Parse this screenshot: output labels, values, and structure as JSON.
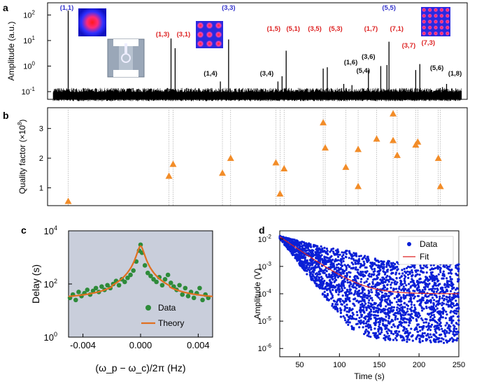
{
  "figure": {
    "panel_labels": [
      "a",
      "b",
      "c",
      "d"
    ]
  },
  "colors": {
    "mode_blue": "#3333cc",
    "mode_red": "#dd2222",
    "mode_black": "#111111",
    "triangle": "#f28c28",
    "scatter_green": "#2e8b3a",
    "theory_orange": "#e07020",
    "d_data": "#0a1fd6",
    "d_fit": "#dd2222",
    "c_bg": "#c9cedb"
  },
  "chart_data": [
    {
      "id": "a",
      "type": "line",
      "ylabel": "Amplitude (a.u.)",
      "yscale": "log",
      "ylim": [
        0.05,
        300
      ],
      "y_ticks": [
        "10",
        "10",
        "10",
        "10"
      ],
      "y_tick_exps": [
        "-1",
        "0",
        "1",
        "2"
      ],
      "y_tick_values": [
        0.1,
        1,
        10,
        100
      ],
      "noise_floor": 0.07,
      "peaks": [
        {
          "label": "(1,1)",
          "x": 0.04,
          "amp": 150,
          "color": "blue"
        },
        {
          "label": "(1,3)",
          "x": 0.29,
          "amp": 12,
          "color": "red"
        },
        {
          "label": "(3,1)",
          "x": 0.3,
          "amp": 5,
          "color": "red"
        },
        {
          "label": "(1,4)",
          "x": 0.41,
          "amp": 0.25,
          "color": "black"
        },
        {
          "label": "(3,3)",
          "x": 0.43,
          "amp": 11,
          "color": "blue"
        },
        {
          "label": "(3,4)",
          "x": 0.55,
          "amp": 0.25,
          "color": "black"
        },
        {
          "label": "(1,5)",
          "x": 0.56,
          "amp": 0.4,
          "color": "red"
        },
        {
          "label": "(5,1)",
          "x": 0.57,
          "amp": 4,
          "color": "red"
        },
        {
          "label": "(3,5)",
          "x": 0.66,
          "amp": 0.8,
          "color": "red"
        },
        {
          "label": "(5,3)",
          "x": 0.67,
          "amp": 0.9,
          "color": "red"
        },
        {
          "label": "(1,6)",
          "x": 0.71,
          "amp": 0.2,
          "color": "black"
        },
        {
          "label": "(5,4)",
          "x": 0.73,
          "amp": 0.18,
          "color": "black"
        },
        {
          "label": "(3,6)",
          "x": 0.77,
          "amp": 0.7,
          "color": "black"
        },
        {
          "label": "(1,7)",
          "x": 0.8,
          "amp": 1.0,
          "color": "red"
        },
        {
          "label": "(7,1)",
          "x": 0.815,
          "amp": 1.1,
          "color": "red"
        },
        {
          "label": "(5,5)",
          "x": 0.82,
          "amp": 9,
          "color": "blue"
        },
        {
          "label": "(3,7)",
          "x": 0.885,
          "amp": 0.7,
          "color": "red"
        },
        {
          "label": "(7,3)",
          "x": 0.895,
          "amp": 1.2,
          "color": "red"
        },
        {
          "label": "(5,6)",
          "x": 0.95,
          "amp": 0.15,
          "color": "black"
        },
        {
          "label": "(1,8)",
          "x": 0.96,
          "amp": 0.2,
          "color": "black"
        }
      ]
    },
    {
      "id": "b",
      "type": "scatter",
      "ylabel": "Quality factor (×10",
      "ylabel_exp": "8",
      "ylim": [
        0.4,
        3.7
      ],
      "y_ticks": [
        1,
        2,
        3
      ],
      "points": [
        {
          "x": 0.04,
          "q": 0.55
        },
        {
          "x": 0.285,
          "q": 1.4
        },
        {
          "x": 0.295,
          "q": 1.8
        },
        {
          "x": 0.415,
          "q": 1.5
        },
        {
          "x": 0.435,
          "q": 2.0
        },
        {
          "x": 0.545,
          "q": 1.85
        },
        {
          "x": 0.555,
          "q": 0.8
        },
        {
          "x": 0.565,
          "q": 1.65
        },
        {
          "x": 0.66,
          "q": 3.2
        },
        {
          "x": 0.665,
          "q": 2.35
        },
        {
          "x": 0.715,
          "q": 1.7
        },
        {
          "x": 0.745,
          "q": 2.3
        },
        {
          "x": 0.745,
          "q": 1.05
        },
        {
          "x": 0.79,
          "q": 2.65
        },
        {
          "x": 0.83,
          "q": 3.5
        },
        {
          "x": 0.83,
          "q": 2.6
        },
        {
          "x": 0.84,
          "q": 2.1
        },
        {
          "x": 0.885,
          "q": 2.45
        },
        {
          "x": 0.89,
          "q": 2.55
        },
        {
          "x": 0.94,
          "q": 2.0
        },
        {
          "x": 0.945,
          "q": 1.05
        }
      ]
    },
    {
      "id": "c",
      "type": "scatter",
      "xlabel": "(ω_p − ω_c)/2π (Hz)",
      "ylabel": "Delay (s)",
      "yscale": "log",
      "xlim": [
        -0.005,
        0.005
      ],
      "ylim": [
        1,
        10000
      ],
      "x_ticks": [
        -0.004,
        0.0,
        0.004
      ],
      "x_tick_labels": [
        "-0.004",
        "0.000",
        "0.004"
      ],
      "y_tick_values": [
        1,
        100,
        10000
      ],
      "y_tick_labels": [
        "10",
        "10",
        "10"
      ],
      "y_tick_exps": [
        "0",
        "2",
        "4"
      ],
      "legend": [
        "Data",
        "Theory"
      ],
      "legend_position": "bottom-right",
      "theory_center": 0.0,
      "theory_peak": 2500,
      "theory_baseline": 25,
      "theory_width": 0.00025,
      "data": {
        "x": [
          -0.0049,
          -0.0047,
          -0.0045,
          -0.0043,
          -0.0041,
          -0.0039,
          -0.0037,
          -0.0035,
          -0.0033,
          -0.0031,
          -0.0029,
          -0.0027,
          -0.0025,
          -0.0023,
          -0.0021,
          -0.0019,
          -0.0017,
          -0.0015,
          -0.0013,
          -0.0011,
          -0.0009,
          -0.0007,
          -0.0005,
          -0.0003,
          -0.0001,
          0.0,
          0.0001,
          0.0003,
          0.0005,
          0.0007,
          0.0009,
          0.0011,
          0.0013,
          0.0015,
          0.0017,
          0.0019,
          0.0021,
          0.0023,
          0.0025,
          0.0027,
          0.0029,
          0.0031,
          0.0033,
          0.0035,
          0.0037,
          0.0039,
          0.0041,
          0.0043,
          0.0045,
          0.0047
        ],
        "y": [
          30,
          40,
          25,
          50,
          35,
          45,
          60,
          40,
          55,
          70,
          50,
          80,
          60,
          90,
          70,
          100,
          130,
          90,
          150,
          120,
          170,
          220,
          320,
          700,
          1800,
          3000,
          1500,
          500,
          260,
          200,
          150,
          120,
          180,
          90,
          150,
          220,
          110,
          80,
          60,
          90,
          40,
          70,
          35,
          50,
          30,
          45,
          70,
          25,
          40,
          30
        ]
      }
    },
    {
      "id": "d",
      "type": "scatter",
      "xlabel": "Time (s)",
      "ylabel": "Amplitude (V)",
      "yscale": "log",
      "xlim": [
        25,
        250
      ],
      "ylim": [
        5e-07,
        0.02
      ],
      "x_ticks": [
        50,
        100,
        150,
        200,
        250
      ],
      "y_tick_values": [
        1e-06,
        1e-05,
        0.0001,
        0.001,
        0.01
      ],
      "y_tick_labels": [
        "10",
        "10",
        "10",
        "10",
        "10"
      ],
      "y_tick_exps": [
        "-6",
        "-5",
        "-4",
        "-3",
        "-2"
      ],
      "legend": [
        "Data",
        "Fit"
      ],
      "legend_position": "top-right",
      "fit": {
        "a0": 0.012,
        "tau": 22,
        "floor": 0.0001
      }
    }
  ]
}
